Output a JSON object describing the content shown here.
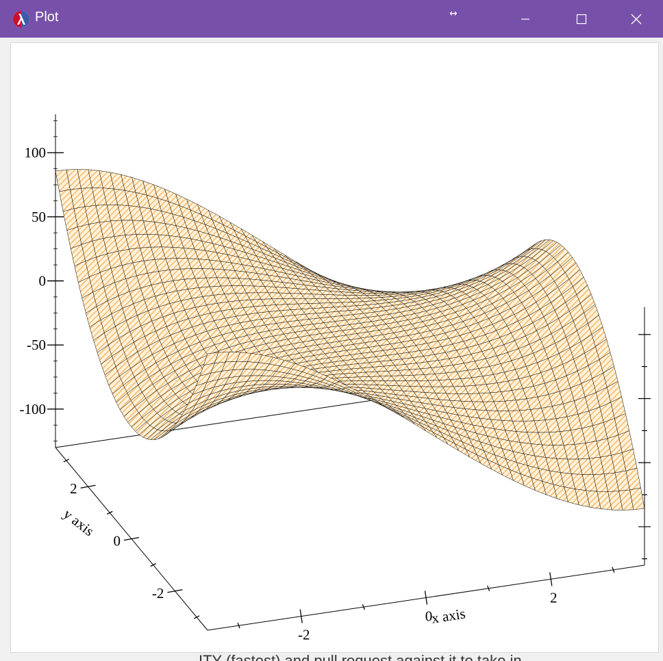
{
  "window": {
    "title": "Plot",
    "icon": "racket-lambda-icon",
    "controls": [
      "minimize-icon",
      "maximize-icon",
      "close-icon"
    ],
    "titlebar_color": "#7751a9"
  },
  "background_text": "ITY (fastest) and pull request against it to take in",
  "chart_data": {
    "type": "surface3d",
    "title": "",
    "xlabel": "x axis",
    "ylabel": "y axis",
    "zlabel": "",
    "xlim": [
      -3.5,
      3.5
    ],
    "ylim": [
      -3.5,
      3.5
    ],
    "zlim": [
      -130,
      130
    ],
    "x_ticks": [
      "-2",
      "0",
      "2"
    ],
    "y_ticks": [
      "2",
      "0",
      "-2"
    ],
    "z_ticks": [
      "100",
      "50",
      "0",
      "-50",
      "-100"
    ],
    "surface": "z = x^3 - 3*x*y^2 (monkey saddle), corner values approx ±130",
    "grid_samples": 41,
    "surface_colors": {
      "fill": "#fff2dc",
      "hatch": "#f7b964",
      "mesh": "#000000"
    },
    "grid": false,
    "legend": "none"
  }
}
